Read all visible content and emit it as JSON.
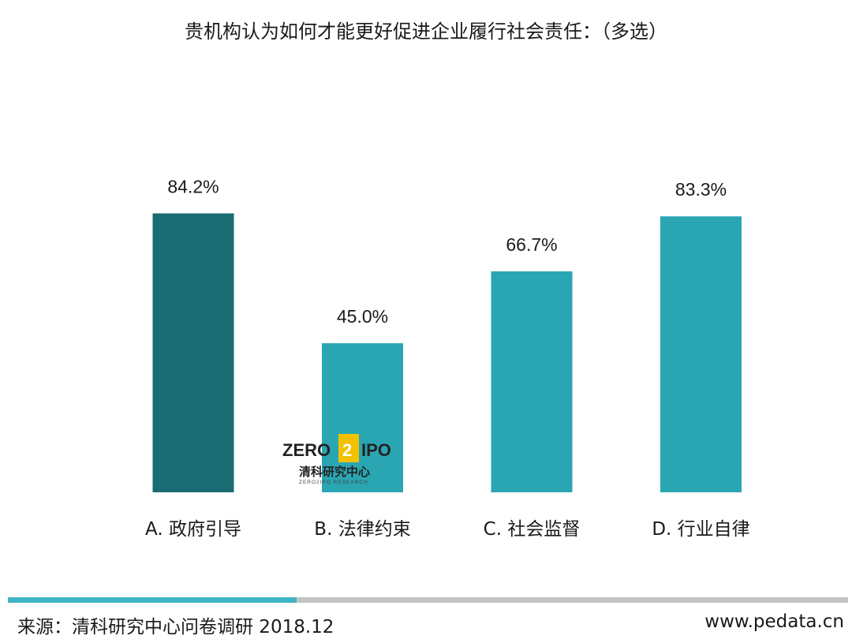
{
  "chart_data": {
    "type": "bar",
    "title": "贵机构认为如何才能更好促进企业履行社会责任：（多选）",
    "categories": [
      "A. 政府引导",
      "B. 法律约束",
      "C. 社会监督",
      "D. 行业自律"
    ],
    "values": [
      84.2,
      45.0,
      66.7,
      83.3
    ],
    "value_labels": [
      "84.2%",
      "45.0%",
      "66.7%",
      "83.3%"
    ],
    "colors": [
      "#1a6b72",
      "#2aa6b3",
      "#2aa6b3",
      "#2aa6b3"
    ],
    "ylim": [
      0,
      100
    ],
    "grid": false,
    "xlabel": "",
    "ylabel": ""
  },
  "watermark": {
    "brand_left": "ZERO",
    "brand_digit": "2",
    "brand_right": "IPO",
    "chinese": "清科研究中心",
    "sub": "ZERO2IPO RESEARCH"
  },
  "footer": {
    "source": "来源：清科研究中心问卷调研 2018.12",
    "site": "www.pedata.cn",
    "accent_color": "#3fb5c2",
    "rule_color": "#c4c4c4"
  }
}
